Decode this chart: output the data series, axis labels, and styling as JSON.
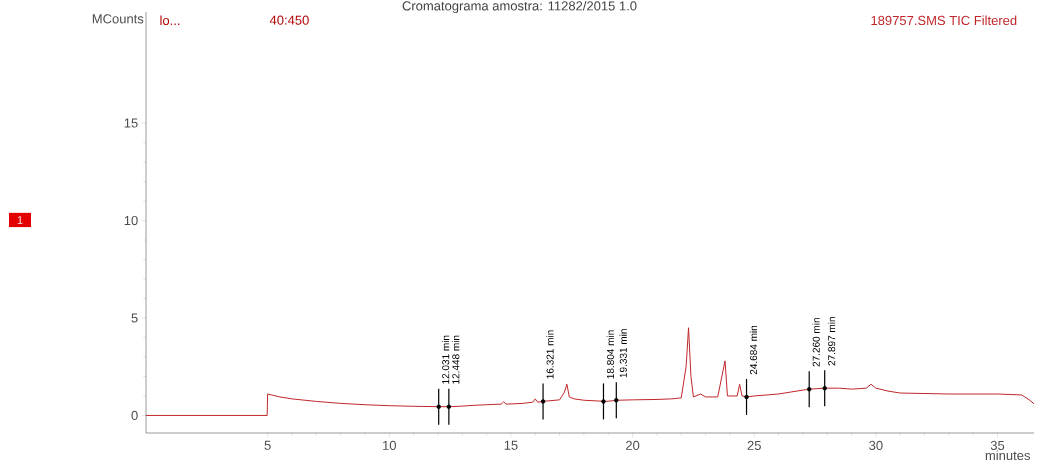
{
  "chart_data": {
    "type": "line",
    "title": "Cromatograma amostra: 11282/2015 1.0",
    "xlabel": "minutes",
    "ylabel": "MCounts",
    "x": [
      0,
      4.98,
      5.0,
      5.5,
      6,
      7,
      8,
      9,
      10,
      11,
      12,
      12.5,
      13,
      13.5,
      14,
      14.6,
      14.7,
      14.8,
      15.5,
      15.9,
      16,
      16.1,
      16.3,
      17,
      17.2,
      17.3,
      17.4,
      17.6,
      18,
      18.9,
      19.4,
      20,
      21,
      21.6,
      22,
      22.2,
      22.3,
      22.4,
      22.5,
      22.8,
      23,
      23.5,
      23.8,
      23.9,
      24.3,
      24.4,
      24.5,
      24.7,
      25,
      26,
      27,
      27.3,
      27.9,
      28.5,
      29,
      29.6,
      29.8,
      30,
      30.5,
      31,
      33,
      35,
      36,
      36.3,
      36.5
    ],
    "series": [
      {
        "name": "189757.SMS TIC Filtered",
        "color": "#c0262a",
        "values": [
          0,
          0,
          1.1,
          0.95,
          0.85,
          0.72,
          0.62,
          0.55,
          0.5,
          0.47,
          0.45,
          0.45,
          0.48,
          0.52,
          0.55,
          0.58,
          0.7,
          0.58,
          0.62,
          0.68,
          0.85,
          0.68,
          0.72,
          0.8,
          1.2,
          1.6,
          0.95,
          0.85,
          0.78,
          0.72,
          0.78,
          0.8,
          0.82,
          0.85,
          0.9,
          2.5,
          4.5,
          2.0,
          0.95,
          1.1,
          0.95,
          0.95,
          2.8,
          1.0,
          1.0,
          1.6,
          1.0,
          0.95,
          1.0,
          1.1,
          1.3,
          1.35,
          1.4,
          1.4,
          1.35,
          1.4,
          1.6,
          1.4,
          1.25,
          1.15,
          1.1,
          1.1,
          1.05,
          0.8,
          0.6
        ]
      }
    ],
    "xlim": [
      0,
      36.5
    ],
    "ylim": [
      -0.9,
      20.7
    ],
    "xticks": [
      5,
      10,
      15,
      20,
      25,
      30,
      35
    ],
    "yticks": [
      0,
      5,
      10,
      15
    ],
    "line_style": "solid",
    "annotations": [
      "lo...",
      "40:450",
      "1",
      {
        "text": "12.031 min",
        "x": 12.031,
        "y": 0.45
      },
      {
        "text": "12.448 min",
        "x": 12.448,
        "y": 0.45
      },
      {
        "text": "16.321 min",
        "x": 16.321,
        "y": 0.72
      },
      {
        "text": "18.804 min",
        "x": 18.804,
        "y": 0.72
      },
      {
        "text": "19.331 min",
        "x": 19.331,
        "y": 0.78
      },
      {
        "text": "24.684 min",
        "x": 24.684,
        "y": 0.95
      },
      {
        "text": "27.260 min",
        "x": 27.26,
        "y": 1.35
      },
      {
        "text": "27.897 min",
        "x": 27.897,
        "y": 1.4
      }
    ]
  }
}
